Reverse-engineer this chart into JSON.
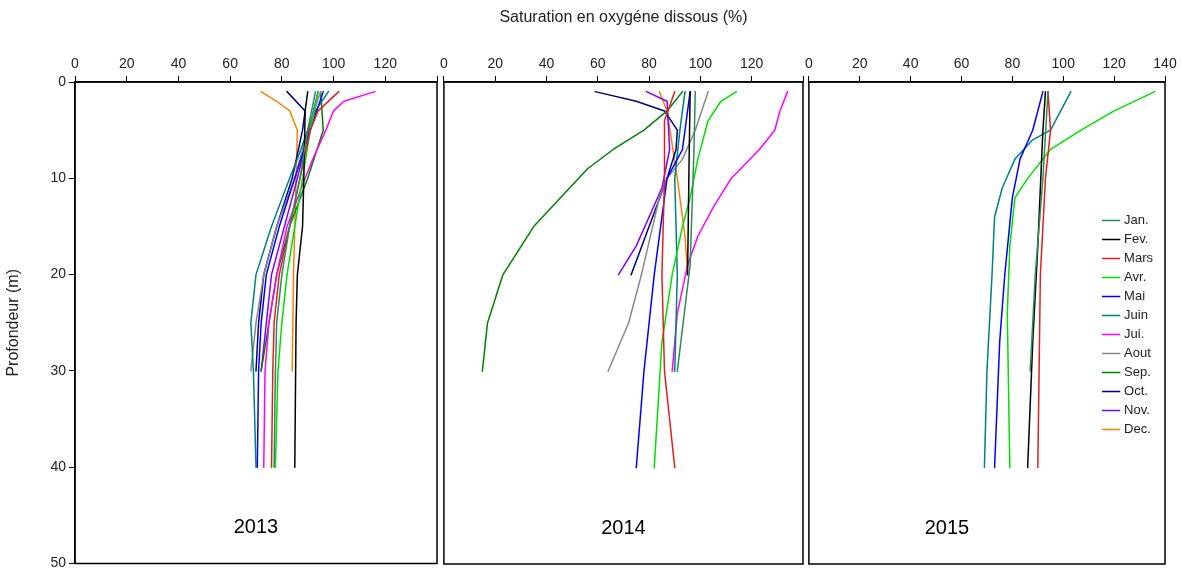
{
  "chart_data": [
    {
      "type": "line",
      "ylabel": "Profondeur (m)",
      "annotations": [
        "2013"
      ],
      "xlim": [
        0,
        140
      ],
      "xticks": [
        0,
        20,
        40,
        60,
        80,
        100,
        120,
        {
          "value": 140,
          "label": null
        }
      ],
      "ylim": [
        50,
        0
      ],
      "yticks": [
        0,
        10,
        20,
        30,
        40,
        50
      ],
      "legend": false,
      "series": [
        {
          "color": "#2e8b57",
          "x": [
            93,
            90,
            87,
            83,
            80,
            78,
            77.5,
            77
          ],
          "values": [
            1,
            5,
            10,
            15,
            20,
            25,
            30,
            40
          ]
        },
        {
          "color": "#000000",
          "x": [
            90,
            89,
            88.5,
            88,
            86,
            85.5,
            85
          ],
          "values": [
            1,
            3,
            10,
            15,
            20,
            25,
            40
          ]
        },
        {
          "color": "#e02020",
          "x": [
            102,
            94,
            91,
            87,
            83,
            79,
            77,
            76.5,
            76
          ],
          "values": [
            1,
            3,
            5,
            10,
            15,
            20,
            25,
            30,
            40
          ]
        },
        {
          "color": "#00e000",
          "x": [
            94,
            91,
            88,
            85,
            82,
            80,
            78.5,
            77.5
          ],
          "values": [
            1,
            5,
            10,
            15,
            20,
            25,
            30,
            40
          ]
        },
        {
          "color": "#0000ff",
          "x": [
            96,
            91,
            85,
            79,
            74,
            72,
            71,
            70.5
          ],
          "values": [
            1,
            5,
            10,
            15,
            20,
            25,
            30,
            40
          ]
        },
        {
          "color": "#008080",
          "x": [
            98,
            93,
            90,
            86,
            83,
            76,
            70,
            68,
            69,
            70
          ],
          "values": [
            1,
            3,
            5,
            8,
            10,
            15,
            20,
            25,
            30,
            40
          ]
        },
        {
          "color": "#ff00ff",
          "x": [
            116,
            104,
            100,
            97,
            92,
            89,
            82,
            78,
            75,
            73.5,
            73
          ],
          "values": [
            1,
            2,
            3,
            5,
            8,
            10,
            15,
            20,
            25,
            30,
            40
          ]
        },
        {
          "color": "#888888",
          "x": [
            95,
            90,
            85,
            78,
            73,
            70,
            68
          ],
          "values": [
            1,
            5,
            10,
            15,
            20,
            25,
            30
          ]
        },
        {
          "color": "#008000",
          "x": [
            95,
            96,
            90,
            83,
            78,
            75,
            72
          ],
          "values": [
            1,
            5,
            10,
            15,
            20,
            25,
            30
          ]
        },
        {
          "color": "#000080",
          "x": [
            82,
            89,
            88,
            84,
            78,
            73,
            71,
            70
          ],
          "values": [
            1,
            3,
            5,
            10,
            15,
            20,
            25,
            30
          ]
        },
        {
          "color": "#8000ff",
          "x": [
            94,
            86,
            76,
            72
          ],
          "values": [
            1,
            10,
            20,
            30
          ]
        },
        {
          "color": "#ff8000",
          "x": [
            72,
            78,
            83,
            86,
            85.5,
            85,
            84.5,
            84
          ],
          "values": [
            1,
            2,
            3,
            5,
            10,
            15,
            20,
            30
          ]
        }
      ]
    },
    {
      "type": "line",
      "xlabel": "Saturation en oxygéne dissous (%)",
      "annotations": [
        "2014"
      ],
      "tick_labels": "x",
      "xlim": [
        0,
        140
      ],
      "xticks": [
        0,
        20,
        40,
        60,
        80,
        100,
        120,
        {
          "value": 140,
          "label": null
        }
      ],
      "ylim": [
        50,
        0
      ],
      "legend": false,
      "series": [
        {
          "color": "#2e8b57",
          "x": [
            98,
            97.5,
            96,
            91
          ],
          "values": [
            1,
            7,
            19,
            30
          ]
        },
        {
          "color": "#000000",
          "x": [
            96,
            95.5,
            95
          ],
          "values": [
            1,
            10,
            20
          ]
        },
        {
          "color": "#e02020",
          "x": [
            90,
            86,
            86,
            85,
            86,
            90
          ],
          "values": [
            1,
            4,
            10,
            20,
            30,
            40
          ]
        },
        {
          "color": "#00e000",
          "x": [
            114,
            108,
            103,
            99,
            96,
            93,
            89,
            85,
            82
          ],
          "values": [
            1,
            2,
            4,
            8,
            12,
            15,
            20,
            27,
            40
          ]
        },
        {
          "color": "#0000ff",
          "x": [
            96,
            93,
            87,
            82,
            78,
            75
          ],
          "values": [
            1,
            7,
            10,
            20,
            30,
            40
          ]
        },
        {
          "color": "#008080",
          "x": [
            94,
            92,
            90,
            91,
            90
          ],
          "values": [
            1,
            5,
            10,
            20,
            30
          ]
        },
        {
          "color": "#ff00ff",
          "x": [
            134,
            131,
            129,
            123,
            112,
            105,
            99,
            95,
            91,
            89
          ],
          "values": [
            1,
            3,
            5,
            7,
            10,
            13,
            16,
            19,
            24,
            30
          ]
        },
        {
          "color": "#888888",
          "x": [
            103,
            98,
            93,
            87,
            84,
            77,
            72,
            64
          ],
          "values": [
            1,
            5,
            8,
            10,
            12,
            20,
            25,
            30
          ]
        },
        {
          "color": "#008000",
          "x": [
            93,
            87,
            78,
            66,
            56,
            49,
            35,
            23,
            17,
            15
          ],
          "values": [
            1,
            3,
            5,
            7,
            9,
            11,
            15,
            20,
            25,
            30
          ]
        },
        {
          "color": "#000080",
          "x": [
            59,
            75,
            86,
            91,
            90.5,
            87,
            80,
            73
          ],
          "values": [
            1,
            2,
            3,
            5,
            7,
            10,
            15,
            20
          ]
        },
        {
          "color": "#8000ff",
          "x": [
            79,
            87,
            88,
            85,
            75,
            68
          ],
          "values": [
            1,
            2,
            7,
            11,
            17,
            20
          ]
        },
        {
          "color": "#ff8000",
          "x": [
            84,
            87,
            91,
            94,
            95
          ],
          "values": [
            1,
            3,
            10,
            16,
            20
          ]
        }
      ]
    },
    {
      "type": "line",
      "annotations": [
        "2015"
      ],
      "tick_labels": "x",
      "xlim": [
        0,
        140
      ],
      "xticks": [
        0,
        20,
        40,
        60,
        80,
        100,
        120,
        140
      ],
      "ylim": [
        50,
        0
      ],
      "legend": "bottom right",
      "series": [
        {
          "name": "Jan.",
          "color": "#2e8b57",
          "x": [
            94,
            92,
            89,
            87
          ],
          "values": [
            1,
            10,
            20,
            30
          ]
        },
        {
          "name": "Fev.",
          "color": "#000000",
          "x": [
            93,
            92,
            90,
            88,
            86
          ],
          "values": [
            1,
            5,
            17,
            27,
            40
          ]
        },
        {
          "name": "Mars",
          "color": "#e02020",
          "x": [
            94,
            95,
            93,
            91,
            90
          ],
          "values": [
            1,
            5,
            10,
            20,
            40
          ]
        },
        {
          "name": "Avr.",
          "color": "#00e000",
          "x": [
            136,
            120,
            107,
            95,
            86,
            81,
            79,
            78,
            79
          ],
          "values": [
            1,
            3,
            5,
            7,
            10,
            12,
            17,
            24,
            40
          ]
        },
        {
          "name": "Mai",
          "color": "#0000ff",
          "x": [
            92,
            88,
            83,
            80,
            77,
            75,
            73
          ],
          "values": [
            1,
            5,
            8,
            12,
            20,
            27,
            40
          ]
        },
        {
          "name": "Juin",
          "color": "#008080",
          "x": [
            103,
            99,
            95,
            88,
            81,
            76,
            73,
            72,
            70,
            69
          ],
          "values": [
            1,
            3,
            5,
            6,
            8,
            11,
            14,
            20,
            30,
            40
          ]
        },
        {
          "name": "Jui.",
          "color": "#ff00ff"
        },
        {
          "name": "Aout",
          "color": "#888888"
        },
        {
          "name": "Sep.",
          "color": "#008000"
        },
        {
          "name": "Oct.",
          "color": "#000080"
        },
        {
          "name": "Nov.",
          "color": "#8000ff"
        },
        {
          "name": "Dec.",
          "color": "#ff8000"
        }
      ]
    }
  ]
}
